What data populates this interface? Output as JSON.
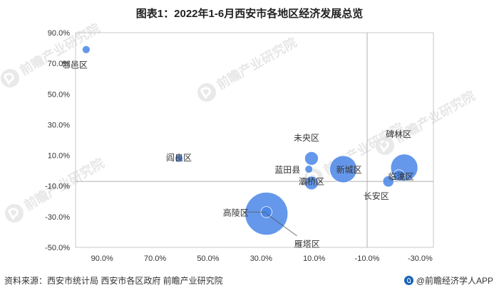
{
  "title": "图表1：2022年1-6月西安市各地区经济发展总览",
  "source": "资料来源：西安市统计局 西安市各区政府 前瞻产业研究院",
  "brand": "@前瞻经济学人APP",
  "watermark": "前瞻产业研究院",
  "colors": {
    "bubble": "#4a86e8",
    "axis": "#999999",
    "reference_line": "#b0b0b0",
    "plot_border": "#c8c8c8"
  },
  "chart_data": {
    "type": "bubble",
    "title": "图表1：2022年1-6月西安市各地区经济发展总览",
    "xlabel": "",
    "ylabel": "",
    "xlim": [
      100,
      -35
    ],
    "ylim": [
      -50,
      90
    ],
    "x_reversed": true,
    "x_ticks": [
      "90.0%",
      "70.0%",
      "50.0%",
      "30.0%",
      "10.0%",
      "-10.0%",
      "-30.0%"
    ],
    "x_tick_values": [
      90,
      70,
      50,
      30,
      10,
      -10,
      -30
    ],
    "y_ticks": [
      "90.0%",
      "70.0%",
      "50.0%",
      "30.0%",
      "10.0%",
      "-10.0%",
      "-30.0%",
      "-50.0%"
    ],
    "y_tick_values": [
      90,
      70,
      50,
      30,
      10,
      -10,
      -30,
      -50
    ],
    "reference_lines": {
      "x": -10,
      "y": -7
    },
    "points": [
      {
        "label": "鄠邑区",
        "x": 96,
        "y": 79,
        "size": 1
      },
      {
        "label": "阎良区",
        "x": 61,
        "y": 8,
        "size": 1
      },
      {
        "label": "未央区",
        "x": 11,
        "y": 8,
        "size": 3
      },
      {
        "label": "蓝田县",
        "x": 12,
        "y": 1,
        "size": 1
      },
      {
        "label": "新城区",
        "x": -1,
        "y": 1,
        "size": 12
      },
      {
        "label": "灞桥区",
        "x": 11,
        "y": -8,
        "size": 3
      },
      {
        "label": "碑林区",
        "x": -24,
        "y": 2,
        "size": 12
      },
      {
        "label": "临潼区",
        "x": -22,
        "y": -3,
        "size": 2
      },
      {
        "label": "长安区",
        "x": -18,
        "y": -7,
        "size": 2
      },
      {
        "label": "高陵区",
        "x": 28,
        "y": -27,
        "size": 2
      },
      {
        "label": "雁塔区",
        "x": 28,
        "y": -28,
        "size": 30
      }
    ]
  }
}
